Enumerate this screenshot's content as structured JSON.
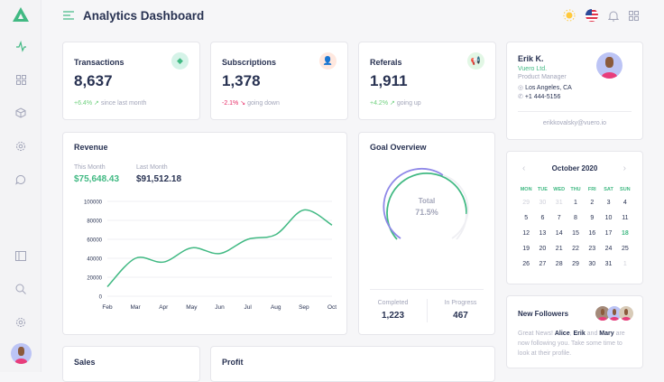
{
  "header": {
    "title": "Analytics Dashboard"
  },
  "sidebar": {
    "items": [
      "activity-icon",
      "grid-icon",
      "box-icon",
      "cog-icon",
      "message-icon",
      "sidebar-panel-icon",
      "search-icon",
      "settings-icon"
    ]
  },
  "stats": [
    {
      "title": "Transactions",
      "value": "8,637",
      "change": "+6.4%",
      "note": "since last month",
      "trend": "up",
      "icon": "diamond-icon",
      "color": "#41b983",
      "bg": "#d5f3e8"
    },
    {
      "title": "Subscriptions",
      "value": "1,378",
      "change": "-2.1%",
      "note": "going down",
      "trend": "down",
      "icon": "user-plus-icon",
      "color": "#ff8a5b",
      "bg": "#ffe8df"
    },
    {
      "title": "Referals",
      "value": "1,911",
      "change": "+4.2%",
      "note": "going up",
      "trend": "up",
      "icon": "megaphone-icon",
      "color": "#6ed07d",
      "bg": "#e2f7e5"
    }
  ],
  "profile": {
    "name": "Erik K.",
    "company": "Vuero Ltd.",
    "role": "Product Manager",
    "location": "Los Angeles, CA",
    "phone": "+1 444-5156",
    "email": "erikkovalsky@vuero.io"
  },
  "revenue": {
    "title": "Revenue",
    "this_month_label": "This Month",
    "this_month": "$75,648.43",
    "last_month_label": "Last Month",
    "last_month": "$91,512.18"
  },
  "chart_data": {
    "type": "line",
    "categories": [
      "Feb",
      "Mar",
      "Apr",
      "May",
      "Jun",
      "Jul",
      "Aug",
      "Sep",
      "Oct"
    ],
    "values": [
      10000,
      40000,
      36000,
      51000,
      45000,
      60000,
      65000,
      91000,
      75000
    ],
    "yticks": [
      "0",
      "20000",
      "40000",
      "60000",
      "80000",
      "100000"
    ],
    "ylim": [
      0,
      100000
    ],
    "grid": true,
    "color": "#41b983"
  },
  "goal": {
    "title": "Goal Overview",
    "total_label": "Total",
    "total": "71.5%",
    "completed_label": "Completed",
    "completed": "1,223",
    "progress_label": "In Progress",
    "progress": "467"
  },
  "calendar": {
    "month": "October 2020",
    "days": [
      "MON",
      "TUE",
      "WED",
      "THU",
      "FRI",
      "SAT",
      "SUN"
    ],
    "dates": [
      "29",
      "30",
      "31",
      "1",
      "2",
      "3",
      "4",
      "5",
      "6",
      "7",
      "8",
      "9",
      "10",
      "11",
      "12",
      "13",
      "14",
      "15",
      "16",
      "17",
      "18",
      "19",
      "20",
      "21",
      "22",
      "23",
      "24",
      "25",
      "26",
      "27",
      "28",
      "29",
      "30",
      "31",
      "1"
    ],
    "today": "18"
  },
  "followers": {
    "title": "New Followers",
    "text_pre": "Great News! ",
    "name1": "Alice",
    "sep": ", ",
    "name2": "Erik",
    "and": " and ",
    "name3": "Mary",
    "text_post": " are now following you. Take some time to look at their profile."
  },
  "bottom": {
    "sales": "Sales",
    "profit": "Profit"
  }
}
